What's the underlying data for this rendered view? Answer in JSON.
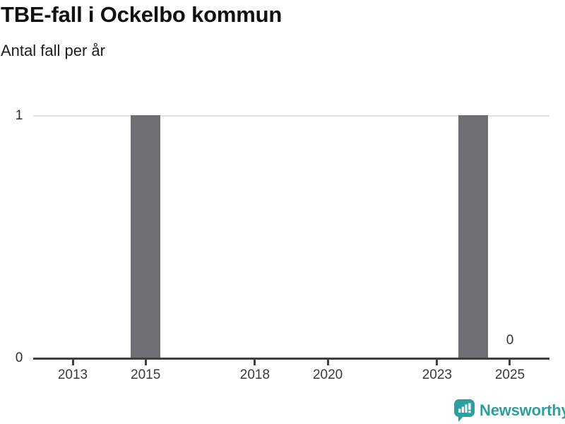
{
  "header": {
    "title": "TBE-fall i Ockelbo kommun",
    "subtitle": "Antal fall per år"
  },
  "chart_data": {
    "type": "bar",
    "title": "TBE-fall i Ockelbo kommun",
    "subtitle": "Antal fall per år",
    "categories": [
      2012,
      2013,
      2014,
      2015,
      2016,
      2017,
      2018,
      2019,
      2020,
      2021,
      2022,
      2023,
      2024,
      2025
    ],
    "values": [
      0,
      0,
      0,
      1,
      0,
      0,
      0,
      0,
      0,
      0,
      0,
      0,
      1,
      0
    ],
    "xlabel": "",
    "ylabel": "",
    "ylim": [
      0,
      1
    ],
    "y_ticks": [
      1,
      0
    ],
    "x_tick_years": [
      2013,
      2015,
      2018,
      2020,
      2023,
      2025
    ],
    "grid": "single horizontal gridline at y=1",
    "legend": "none",
    "annotations": [
      {
        "year": 2025,
        "label": "0"
      }
    ]
  },
  "footer": {
    "brand_label": "Newsworthy",
    "logo_icon": "bar-chart-speech-bubble-icon"
  },
  "colors": {
    "background": "#ffffff",
    "bar": "#6e6e73",
    "gridline": "#e2e2e2",
    "axis": "#404040",
    "tick_label": "#3a3a3a",
    "title": "#111111",
    "brand": "#2f9e9e"
  }
}
